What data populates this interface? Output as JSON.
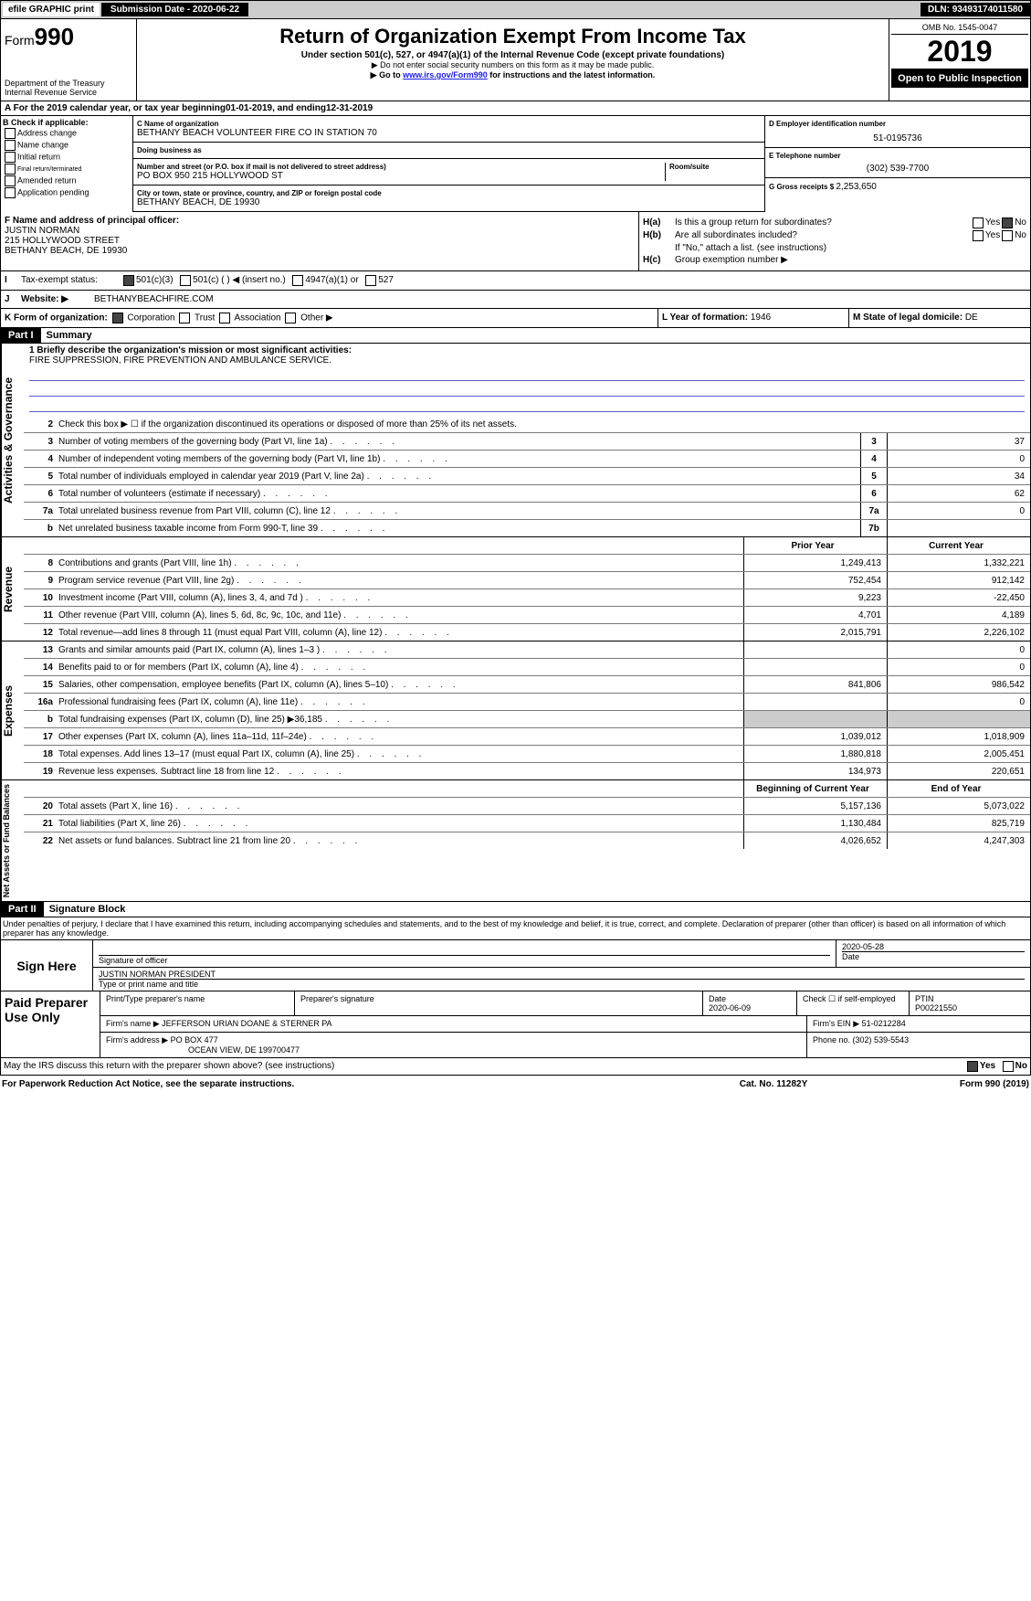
{
  "topbar": {
    "efile": "efile GRAPHIC print",
    "subdate_lbl": "Submission Date - ",
    "subdate": "2020-06-22",
    "dln_lbl": "DLN: ",
    "dln": "93493174011580"
  },
  "header": {
    "form": "Form",
    "formnum": "990",
    "dept": "Department of the Treasury",
    "irs": "Internal Revenue Service",
    "title": "Return of Organization Exempt From Income Tax",
    "sub": "Under section 501(c), 527, or 4947(a)(1) of the Internal Revenue Code (except private foundations)",
    "warn": "▶ Do not enter social security numbers on this form as it may be made public.",
    "goto_pre": "▶ Go to ",
    "goto_link": "www.irs.gov/Form990",
    "goto_post": " for instructions and the latest information.",
    "omb": "OMB No. 1545-0047",
    "year": "2019",
    "open": "Open to Public Inspection"
  },
  "rowA": {
    "pre": "A   For the 2019 calendar year, or tax year beginning ",
    "start": "01-01-2019",
    "mid": " , and ending ",
    "end": "12-31-2019"
  },
  "colB": {
    "hdr": "B Check if applicable:",
    "items": [
      "Address change",
      "Name change",
      "Initial return",
      "Final return/terminated",
      "Amended return",
      "Application pending"
    ]
  },
  "colC": {
    "name_lbl": "C Name of organization",
    "name": "BETHANY BEACH VOLUNTEER FIRE CO IN STATION 70",
    "dba_lbl": "Doing business as",
    "dba": "",
    "addr_lbl": "Number and street (or P.O. box if mail is not delivered to street address)",
    "addr": "PO BOX 950 215 HOLLYWOOD ST",
    "room_lbl": "Room/suite",
    "city_lbl": "City or town, state or province, country, and ZIP or foreign postal code",
    "city": "BETHANY BEACH, DE  19930"
  },
  "colD": {
    "ein_lbl": "D Employer identification number",
    "ein": "51-0195736",
    "tel_lbl": "E Telephone number",
    "tel": "(302) 539-7700",
    "gross_lbl": "G Gross receipts $ ",
    "gross": "2,253,650"
  },
  "sectF": {
    "lbl": "F Name and address of principal officer:",
    "name": "JUSTIN NORMAN",
    "addr1": "215 HOLLYWOOD STREET",
    "addr2": "BETHANY BEACH, DE  19930"
  },
  "sectH": {
    "a_lbl": "H(a)",
    "a_txt": "Is this a group return for subordinates?",
    "a_yes": "Yes",
    "a_no": "No",
    "b_lbl": "H(b)",
    "b_txt": "Are all subordinates included?",
    "b_yes": "Yes",
    "b_no": "No",
    "b_note": "If \"No,\" attach a list. (see instructions)",
    "c_lbl": "H(c)",
    "c_txt": "Group exemption number ▶"
  },
  "rowI": {
    "lbl": "I",
    "txt": "Tax-exempt status:",
    "o1": "501(c)(3)",
    "o2": "501(c) (  ) ◀ (insert no.)",
    "o3": "4947(a)(1) or",
    "o4": "527"
  },
  "rowJ": {
    "lbl": "J",
    "txt": "Website: ▶",
    "val": "BETHANYBEACHFIRE.COM"
  },
  "rowK": {
    "lbl": "K Form of organization:",
    "o1": "Corporation",
    "o2": "Trust",
    "o3": "Association",
    "o4": "Other ▶"
  },
  "rowL": {
    "yf_lbl": "L Year of formation: ",
    "yf": "1946",
    "dom_lbl": "M State of legal domicile: ",
    "dom": "DE"
  },
  "part1": {
    "bar": "Part I",
    "title": "Summary"
  },
  "summary": {
    "l1_lbl": "1  Briefly describe the organization's mission or most significant activities:",
    "l1_val": "FIRE SUPPRESSION, FIRE PREVENTION AND AMBULANCE SERVICE.",
    "l2": "Check this box ▶ ☐ if the organization discontinued its operations or disposed of more than 25% of its net assets.",
    "rows": [
      {
        "n": "3",
        "d": "Number of voting members of the governing body (Part VI, line 1a)",
        "b": "3",
        "v": "37"
      },
      {
        "n": "4",
        "d": "Number of independent voting members of the governing body (Part VI, line 1b)",
        "b": "4",
        "v": "0"
      },
      {
        "n": "5",
        "d": "Total number of individuals employed in calendar year 2019 (Part V, line 2a)",
        "b": "5",
        "v": "34"
      },
      {
        "n": "6",
        "d": "Total number of volunteers (estimate if necessary)",
        "b": "6",
        "v": "62"
      },
      {
        "n": "7a",
        "d": "Total unrelated business revenue from Part VIII, column (C), line 12",
        "b": "7a",
        "v": "0"
      },
      {
        "n": "b",
        "d": "Net unrelated business taxable income from Form 990-T, line 39",
        "b": "7b",
        "v": ""
      }
    ]
  },
  "revenue": {
    "hdr_prior": "Prior Year",
    "hdr_curr": "Current Year",
    "rows": [
      {
        "n": "8",
        "d": "Contributions and grants (Part VIII, line 1h)",
        "p": "1,249,413",
        "c": "1,332,221"
      },
      {
        "n": "9",
        "d": "Program service revenue (Part VIII, line 2g)",
        "p": "752,454",
        "c": "912,142"
      },
      {
        "n": "10",
        "d": "Investment income (Part VIII, column (A), lines 3, 4, and 7d )",
        "p": "9,223",
        "c": "-22,450"
      },
      {
        "n": "11",
        "d": "Other revenue (Part VIII, column (A), lines 5, 6d, 8c, 9c, 10c, and 11e)",
        "p": "4,701",
        "c": "4,189"
      },
      {
        "n": "12",
        "d": "Total revenue—add lines 8 through 11 (must equal Part VIII, column (A), line 12)",
        "p": "2,015,791",
        "c": "2,226,102"
      }
    ]
  },
  "expenses": {
    "rows": [
      {
        "n": "13",
        "d": "Grants and similar amounts paid (Part IX, column (A), lines 1–3 )",
        "p": "",
        "c": "0"
      },
      {
        "n": "14",
        "d": "Benefits paid to or for members (Part IX, column (A), line 4)",
        "p": "",
        "c": "0"
      },
      {
        "n": "15",
        "d": "Salaries, other compensation, employee benefits (Part IX, column (A), lines 5–10)",
        "p": "841,806",
        "c": "986,542"
      },
      {
        "n": "16a",
        "d": "Professional fundraising fees (Part IX, column (A), line 11e)",
        "p": "",
        "c": "0"
      },
      {
        "n": "b",
        "d": "Total fundraising expenses (Part IX, column (D), line 25) ▶36,185",
        "p": "—",
        "c": "—"
      },
      {
        "n": "17",
        "d": "Other expenses (Part IX, column (A), lines 11a–11d, 11f–24e)",
        "p": "1,039,012",
        "c": "1,018,909"
      },
      {
        "n": "18",
        "d": "Total expenses. Add lines 13–17 (must equal Part IX, column (A), line 25)",
        "p": "1,880,818",
        "c": "2,005,451"
      },
      {
        "n": "19",
        "d": "Revenue less expenses. Subtract line 18 from line 12",
        "p": "134,973",
        "c": "220,651"
      }
    ]
  },
  "netassets": {
    "hdr_prior": "Beginning of Current Year",
    "hdr_curr": "End of Year",
    "rows": [
      {
        "n": "20",
        "d": "Total assets (Part X, line 16)",
        "p": "5,157,136",
        "c": "5,073,022"
      },
      {
        "n": "21",
        "d": "Total liabilities (Part X, line 26)",
        "p": "1,130,484",
        "c": "825,719"
      },
      {
        "n": "22",
        "d": "Net assets or fund balances. Subtract line 21 from line 20",
        "p": "4,026,652",
        "c": "4,247,303"
      }
    ]
  },
  "part2": {
    "bar": "Part II",
    "title": "Signature Block"
  },
  "perjury": "Under penalties of perjury, I declare that I have examined this return, including accompanying schedules and statements, and to the best of my knowledge and belief, it is true, correct, and complete. Declaration of preparer (other than officer) is based on all information of which preparer has any knowledge.",
  "sign": {
    "lbl": "Sign Here",
    "sig_lbl": "Signature of officer",
    "date": "2020-05-28",
    "date_lbl": "Date",
    "name": "JUSTIN NORMAN  PRESIDENT",
    "name_lbl": "Type or print name and title"
  },
  "paid": {
    "lbl": "Paid Preparer Use Only",
    "col1": "Print/Type preparer's name",
    "col2": "Preparer's signature",
    "col3_lbl": "Date",
    "col3": "2020-06-09",
    "col4_lbl": "Check ☐ if self-employed",
    "col5_lbl": "PTIN",
    "col5": "P00221550",
    "firm_lbl": "Firm's name  ▶",
    "firm": "JEFFERSON URIAN DOANE & STERNER PA",
    "ein_lbl": "Firm's EIN ▶",
    "ein": "51-0212284",
    "addr_lbl": "Firm's address ▶",
    "addr": "PO BOX 477",
    "addr2": "OCEAN VIEW, DE  199700477",
    "phone_lbl": "Phone no. ",
    "phone": "(302) 539-5543"
  },
  "discuss": {
    "txt": "May the IRS discuss this return with the preparer shown above? (see instructions)",
    "yes": "Yes",
    "no": "No"
  },
  "footer": {
    "left": "For Paperwork Reduction Act Notice, see the separate instructions.",
    "mid": "Cat. No. 11282Y",
    "right": "Form 990 (2019)"
  },
  "vert": {
    "gov": "Activities & Governance",
    "rev": "Revenue",
    "exp": "Expenses",
    "net": "Net Assets or Fund Balances"
  }
}
